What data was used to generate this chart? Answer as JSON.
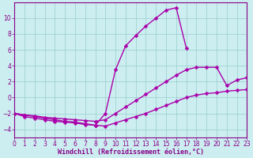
{
  "xlabel": "Windchill (Refroidissement éolien,°C)",
  "bg_color": "#cceef0",
  "grid_color": "#99cccc",
  "line_color": "#aa00aa",
  "xlim": [
    0,
    23
  ],
  "ylim": [
    -5,
    12
  ],
  "yticks": [
    -4,
    -2,
    0,
    2,
    4,
    6,
    8,
    10
  ],
  "xticks": [
    0,
    1,
    2,
    3,
    4,
    5,
    6,
    7,
    8,
    9,
    10,
    11,
    12,
    13,
    14,
    15,
    16,
    17,
    18,
    19,
    20,
    21,
    22,
    23
  ],
  "line1_x": [
    0,
    1,
    2,
    3,
    4,
    5,
    6,
    7,
    8,
    9,
    10,
    11,
    12,
    13,
    14,
    15,
    16,
    17,
    18,
    19,
    20,
    21,
    22,
    23
  ],
  "line1_y": [
    -2.0,
    -2.4,
    -2.6,
    -2.8,
    -3.0,
    -3.1,
    -3.2,
    -3.4,
    -3.5,
    -3.6,
    -3.2,
    -2.8,
    -2.4,
    -2.0,
    -1.5,
    -1.0,
    -0.5,
    0.0,
    0.3,
    0.5,
    0.6,
    0.8,
    0.9,
    1.0
  ],
  "line2_x": [
    0,
    1,
    2,
    3,
    4,
    5,
    6,
    7,
    8,
    9,
    10,
    11,
    12,
    13,
    14,
    15,
    16,
    17,
    18,
    19,
    20,
    21,
    22,
    23
  ],
  "line2_y": [
    -2.0,
    -2.2,
    -2.3,
    -2.5,
    -2.6,
    -2.7,
    -2.8,
    -2.9,
    -3.0,
    -2.8,
    -2.0,
    -1.2,
    -0.4,
    0.4,
    1.2,
    2.0,
    2.8,
    3.5,
    3.8,
    3.8,
    3.8,
    1.5,
    2.2,
    2.5
  ],
  "line3_x": [
    0,
    1,
    2,
    3,
    4,
    5,
    6,
    7,
    8,
    9,
    10,
    11,
    12,
    13,
    14,
    15,
    16,
    17
  ],
  "line3_y": [
    -2.0,
    -2.2,
    -2.4,
    -2.6,
    -2.8,
    -3.0,
    -3.1,
    -3.3,
    -3.5,
    -2.0,
    3.5,
    6.5,
    7.8,
    9.0,
    10.0,
    11.0,
    11.3,
    6.2
  ],
  "marker": "D",
  "markersize": 2.5,
  "linewidth": 1.0,
  "xlabel_fontsize": 6.0,
  "tick_fontsize": 5.5,
  "xlabel_color": "#880088",
  "tick_color": "#880088",
  "axis_color": "#880088"
}
